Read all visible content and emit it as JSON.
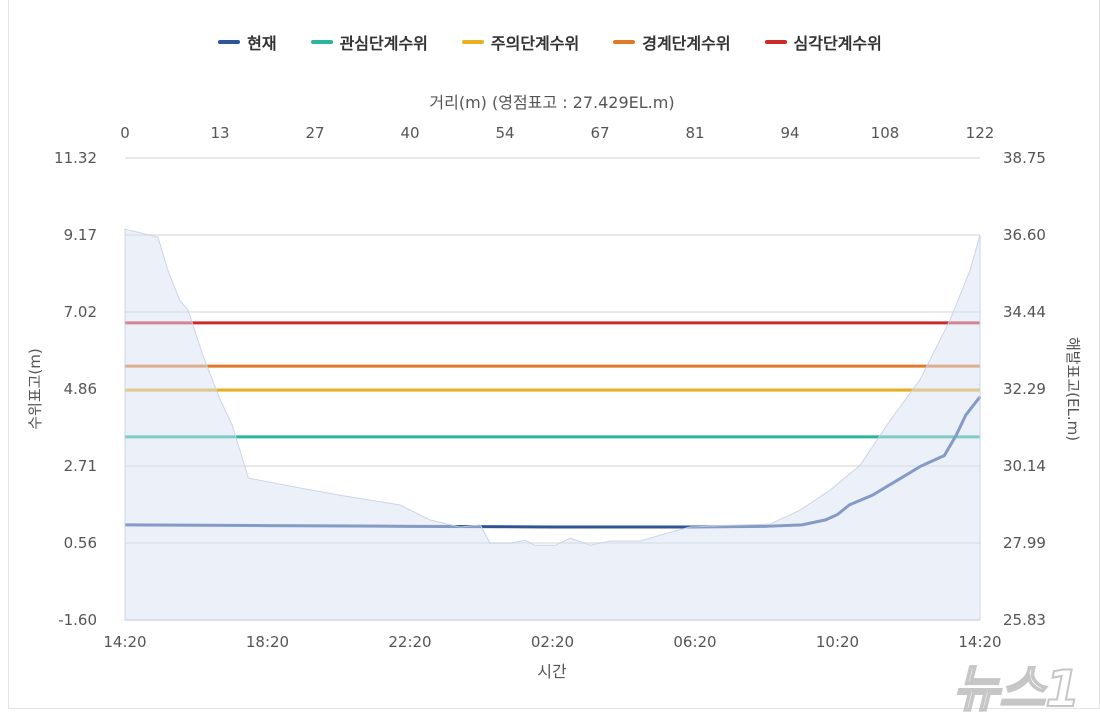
{
  "chart_data": {
    "type": "line",
    "legend": {
      "placement": "top",
      "items": [
        {
          "label": "현재",
          "color": "#2f5597"
        },
        {
          "label": "관심단계수위",
          "color": "#2bb59a"
        },
        {
          "label": "주의단계수위",
          "color": "#e8b020"
        },
        {
          "label": "경계단계수위",
          "color": "#e07a2a"
        },
        {
          "label": "심각단계수위",
          "color": "#cc2a2a"
        }
      ]
    },
    "top_axis": {
      "title": "거리(m) (영점표고 : 27.429EL.m)",
      "ticks": [
        "0",
        "13",
        "27",
        "40",
        "54",
        "67",
        "81",
        "94",
        "108",
        "122"
      ],
      "range": [
        0,
        122
      ]
    },
    "left_axis": {
      "title": "수위표고(m)",
      "ticks": [
        "11.32",
        "9.17",
        "7.02",
        "4.86",
        "2.71",
        "0.56",
        "-1.60"
      ],
      "range": [
        -1.6,
        11.32
      ]
    },
    "right_axis": {
      "title": "해발표고(EL.m)",
      "ticks": [
        "38.75",
        "36.60",
        "34.44",
        "32.29",
        "30.14",
        "27.99",
        "25.83"
      ],
      "range": [
        25.83,
        38.75
      ]
    },
    "bottom_axis": {
      "title": "시간",
      "ticks": [
        "14:20",
        "18:20",
        "22:20",
        "02:20",
        "06:20",
        "10:20",
        "14:20"
      ]
    },
    "grid": true,
    "thresholds": [
      {
        "name": "관심단계수위",
        "value": 3.52,
        "color": "#2bb59a"
      },
      {
        "name": "주의단계수위",
        "value": 4.83,
        "color": "#e8b020"
      },
      {
        "name": "경계단계수위",
        "value": 5.5,
        "color": "#e07a2a"
      },
      {
        "name": "심각단계수위",
        "value": 6.71,
        "color": "#cc2a2a"
      }
    ],
    "current_series": {
      "name": "현재",
      "color": "#2f5597",
      "time": [
        "14:20",
        "18:20",
        "22:20",
        "00:20",
        "02:20",
        "06:20",
        "08:20",
        "09:20",
        "10:00",
        "10:20",
        "10:40",
        "11:20",
        "12:00",
        "12:40",
        "13:20",
        "13:40",
        "13:56",
        "14:20"
      ],
      "values": [
        1.06,
        1.04,
        1.02,
        1.01,
        1.0,
        1.0,
        1.02,
        1.06,
        1.2,
        1.35,
        1.62,
        1.9,
        2.3,
        2.7,
        3.0,
        3.57,
        4.13,
        4.64
      ]
    },
    "cross_section": {
      "fill_color": "#e8eef8",
      "distance_m": [
        0,
        4.7,
        6.1,
        7.8,
        9.0,
        11.1,
        13.6,
        15.3,
        17.6,
        25.0,
        30.7,
        39.2,
        43.5,
        47.8,
        50.7,
        52.1,
        54.9,
        57.1,
        58.5,
        61.4,
        63.5,
        66.4,
        69.2,
        73.5,
        76.3,
        80.6,
        86.3,
        92.0,
        96.3,
        100.6,
        104.9,
        109.2,
        113.4,
        117.7,
        120.6,
        122.0
      ],
      "elevation_elm": [
        36.76,
        36.54,
        35.62,
        34.78,
        34.5,
        33.24,
        31.98,
        31.28,
        29.8,
        29.52,
        29.32,
        29.05,
        28.63,
        28.43,
        28.49,
        27.98,
        27.98,
        28.06,
        27.92,
        27.92,
        28.12,
        27.92,
        28.04,
        28.04,
        28.2,
        28.43,
        28.48,
        28.51,
        28.9,
        29.46,
        30.16,
        31.42,
        32.54,
        34.21,
        35.62,
        36.6
      ]
    }
  },
  "watermark": "뉴스1"
}
